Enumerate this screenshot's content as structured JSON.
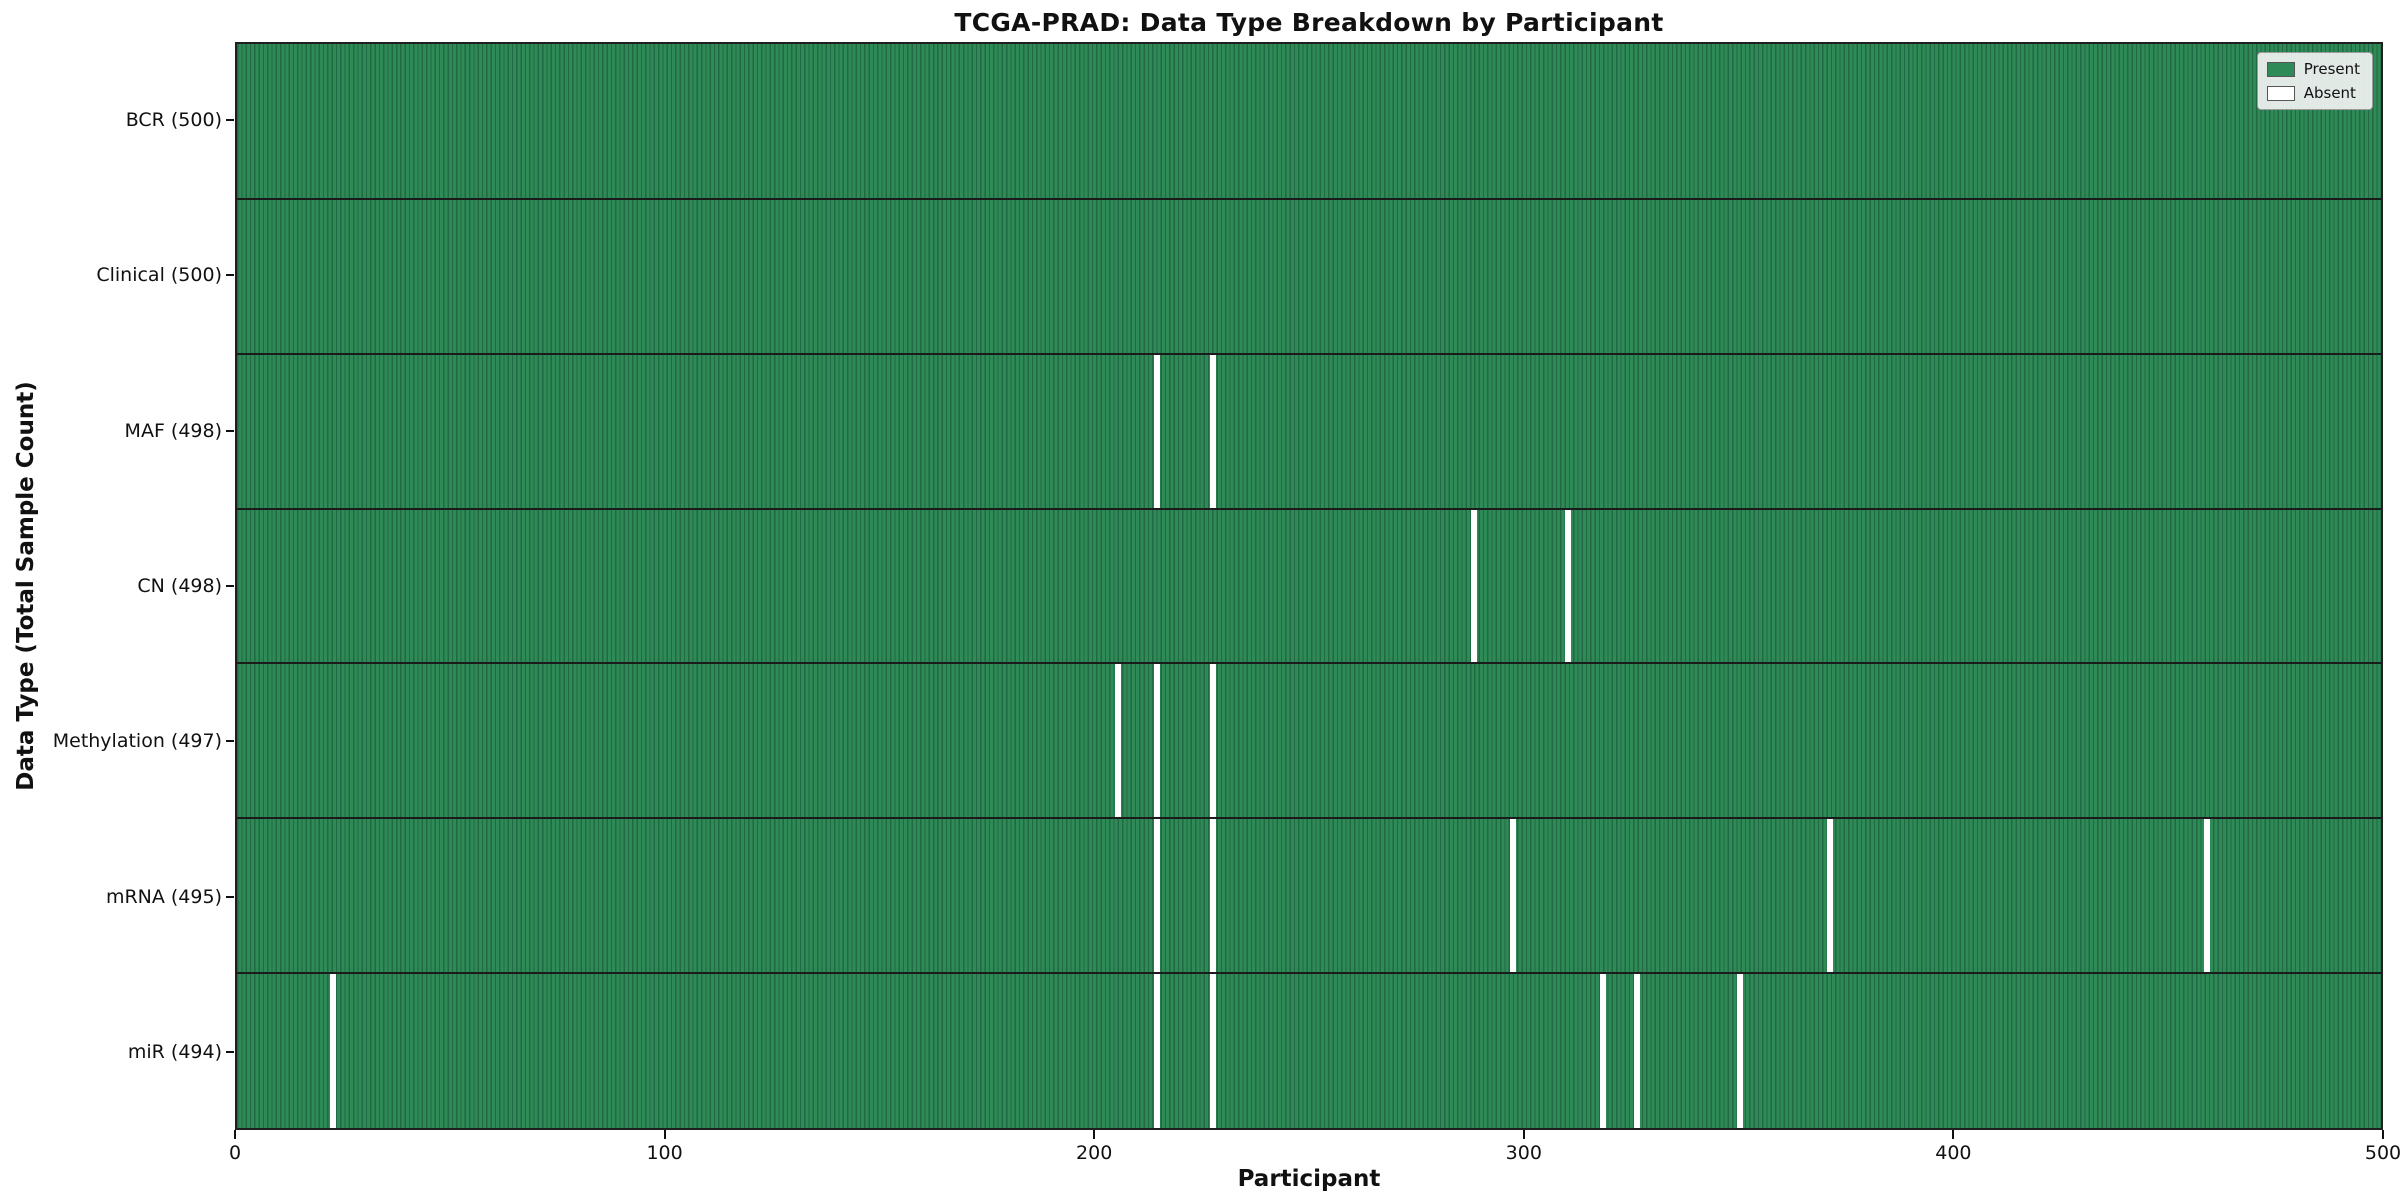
{
  "chart_data": {
    "type": "heatmap",
    "title": "TCGA-PRAD: Data Type Breakdown by Participant",
    "xlabel": "Participant",
    "ylabel": "Data Type (Total Sample Count)",
    "n_participants": 500,
    "x_axis": {
      "min": 0,
      "max": 500,
      "ticks": [
        0,
        100,
        200,
        300,
        400,
        500
      ]
    },
    "legend": [
      {
        "label": "Present",
        "color": "#2e8b57"
      },
      {
        "label": "Absent",
        "color": "#ffffff"
      }
    ],
    "colors": {
      "present": "#2e8b57",
      "cell_edge": "#216942",
      "absent": "#ffffff",
      "row_separator": "#1b1b1b"
    },
    "rows": [
      {
        "name": "BCR",
        "label": "BCR (500)",
        "total": 500,
        "absent_participants": []
      },
      {
        "name": "Clinical",
        "label": "Clinical (500)",
        "total": 500,
        "absent_participants": []
      },
      {
        "name": "MAF",
        "label": "MAF (498)",
        "total": 498,
        "absent_participants": [
          214,
          227
        ]
      },
      {
        "name": "CN",
        "label": "CN (498)",
        "total": 498,
        "absent_participants": [
          288,
          310
        ]
      },
      {
        "name": "Methylation",
        "label": "Methylation (497)",
        "total": 497,
        "absent_participants": [
          205,
          214,
          227
        ]
      },
      {
        "name": "mRNA",
        "label": "mRNA (495)",
        "total": 495,
        "absent_participants": [
          214,
          227,
          297,
          371,
          459
        ]
      },
      {
        "name": "miR",
        "label": "miR (494)",
        "total": 494,
        "absent_participants": [
          22,
          214,
          227,
          318,
          326,
          350
        ]
      }
    ]
  }
}
